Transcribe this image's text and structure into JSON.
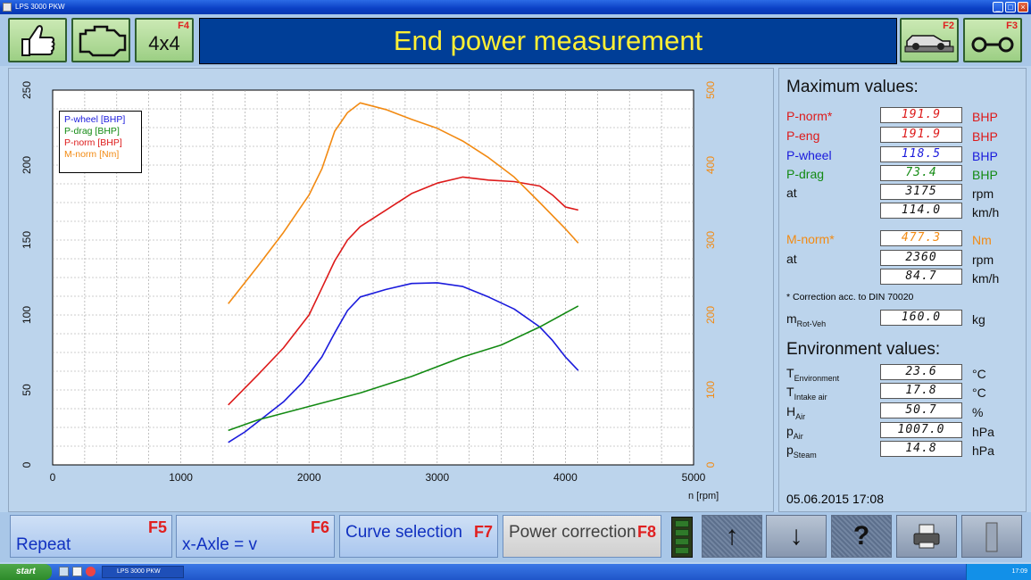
{
  "window": {
    "title": "LPS 3000 PKW"
  },
  "topbar": {
    "ok_icon": "thumbs-up-icon",
    "engine_icon": "engine-icon",
    "drive_label": "4x4",
    "drive_fkey": "F4",
    "title": "End power measurement",
    "dyno_fkey": "F2",
    "dyno_icon": "car-on-dyno-icon",
    "axle_fkey": "F3",
    "axle_icon": "axle-icon"
  },
  "chart_data": {
    "type": "line",
    "xlabel": "n [rpm]",
    "xlim": [
      0,
      5000
    ],
    "xticks": [
      0,
      1000,
      2000,
      3000,
      4000,
      5000
    ],
    "ylim_left": [
      0,
      250
    ],
    "yticks_left": [
      0,
      50,
      100,
      150,
      200,
      250
    ],
    "ylim_right": [
      0,
      500
    ],
    "yticks_right": [
      0,
      100,
      200,
      300,
      400,
      500
    ],
    "grid": true,
    "legend_position": "top-left",
    "legend": [
      "P-wheel [BHP]",
      "P-drag [BHP]",
      "P-norm [BHP]",
      "M-norm [Nm]"
    ],
    "series": [
      {
        "name": "P-wheel [BHP]",
        "axis": "left",
        "color": "#1a1adc",
        "points": [
          [
            1370,
            15
          ],
          [
            1500,
            22
          ],
          [
            1650,
            32
          ],
          [
            1800,
            42
          ],
          [
            1950,
            55
          ],
          [
            2100,
            72
          ],
          [
            2200,
            88
          ],
          [
            2300,
            103
          ],
          [
            2400,
            112
          ],
          [
            2600,
            117
          ],
          [
            2800,
            121
          ],
          [
            3000,
            121.5
          ],
          [
            3200,
            119
          ],
          [
            3400,
            112
          ],
          [
            3600,
            104
          ],
          [
            3800,
            92
          ],
          [
            3900,
            83
          ],
          [
            4000,
            72
          ],
          [
            4100,
            63
          ]
        ]
      },
      {
        "name": "P-drag [BHP]",
        "axis": "left",
        "color": "#138a13",
        "points": [
          [
            1370,
            23
          ],
          [
            1600,
            30
          ],
          [
            2000,
            39
          ],
          [
            2400,
            48
          ],
          [
            2800,
            59
          ],
          [
            3200,
            72
          ],
          [
            3500,
            80
          ],
          [
            3800,
            92
          ],
          [
            4100,
            106
          ]
        ]
      },
      {
        "name": "P-norm [BHP]",
        "axis": "left",
        "color": "#dd1a1a",
        "points": [
          [
            1370,
            40
          ],
          [
            1600,
            60
          ],
          [
            1800,
            78
          ],
          [
            2000,
            100
          ],
          [
            2100,
            118
          ],
          [
            2200,
            136
          ],
          [
            2300,
            150
          ],
          [
            2400,
            159
          ],
          [
            2600,
            170
          ],
          [
            2800,
            181
          ],
          [
            3000,
            188
          ],
          [
            3200,
            192
          ],
          [
            3400,
            190
          ],
          [
            3600,
            189
          ],
          [
            3800,
            186
          ],
          [
            3900,
            180
          ],
          [
            4000,
            172
          ],
          [
            4100,
            170
          ]
        ]
      },
      {
        "name": "M-norm [Nm]",
        "axis": "right",
        "color": "#f28a12",
        "points": [
          [
            1370,
            215
          ],
          [
            1600,
            265
          ],
          [
            1800,
            310
          ],
          [
            2000,
            360
          ],
          [
            2100,
            395
          ],
          [
            2200,
            445
          ],
          [
            2300,
            470
          ],
          [
            2400,
            483
          ],
          [
            2600,
            474
          ],
          [
            2800,
            461
          ],
          [
            3000,
            449
          ],
          [
            3200,
            432
          ],
          [
            3400,
            410
          ],
          [
            3600,
            384
          ],
          [
            3800,
            350
          ],
          [
            4000,
            315
          ],
          [
            4100,
            296
          ]
        ]
      }
    ]
  },
  "max_values": {
    "heading": "Maximum values:",
    "p_norm": {
      "label": "P-norm*",
      "value": "191.9",
      "unit": "BHP"
    },
    "p_eng": {
      "label": "P-eng",
      "value": "191.9",
      "unit": "BHP"
    },
    "p_wheel": {
      "label": "P-wheel",
      "value": "118.5",
      "unit": "BHP"
    },
    "p_drag": {
      "label": "P-drag",
      "value": "73.4",
      "unit": "BHP"
    },
    "at_rpm": {
      "label": "at",
      "value": "3175",
      "unit": "rpm"
    },
    "at_kmh": {
      "value": "114.0",
      "unit": "km/h"
    },
    "m_norm": {
      "label": "M-norm*",
      "value": "477.3",
      "unit": "Nm"
    },
    "m_at_rpm": {
      "label": "at",
      "value": "2360",
      "unit": "rpm"
    },
    "m_at_kmh": {
      "value": "84.7",
      "unit": "km/h"
    },
    "note": "* Correction acc. to DIN 70020",
    "m_rot": {
      "label": "m",
      "sub": "Rot-Veh",
      "value": "160.0",
      "unit": "kg"
    }
  },
  "environment": {
    "heading": "Environment values:",
    "t_env": {
      "label": "T",
      "sub": "Environment",
      "value": "23.6",
      "unit": "°C"
    },
    "t_intake": {
      "label": "T",
      "sub": "Intake air",
      "value": "17.8",
      "unit": "°C"
    },
    "h_air": {
      "label": "H",
      "sub": "Air",
      "value": "50.7",
      "unit": "%"
    },
    "p_air": {
      "label": "p",
      "sub": "Air",
      "value": "1007.0",
      "unit": "hPa"
    },
    "p_steam": {
      "label": "p",
      "sub": "Steam",
      "value": "14.8",
      "unit": "hPa"
    }
  },
  "datetime": "05.06.2015  17:08",
  "bottombar": {
    "repeat": {
      "label": "Repeat",
      "fkey": "F5"
    },
    "xaxle": {
      "label": "x-Axle = v",
      "fkey": "F6"
    },
    "curve": {
      "label": "Curve selection",
      "fkey": "F7"
    },
    "power": {
      "label": "Power correction",
      "fkey": "F8"
    },
    "up_icon": "arrow-up-icon",
    "down_icon": "arrow-down-icon",
    "help_icon": "help-icon",
    "print_icon": "printer-icon",
    "exit_icon": "door-icon"
  },
  "taskbar": {
    "start": "start",
    "task": "LPS 3000 PKW",
    "clock": "17:09"
  },
  "colors": {
    "banner_bg": "#003e97",
    "banner_text": "#ffef34",
    "pwheel": "#1a1adc",
    "pdrag": "#138a13",
    "pnorm": "#dd1a1a",
    "mnorm": "#f28a12",
    "fkey": "#e02020"
  }
}
